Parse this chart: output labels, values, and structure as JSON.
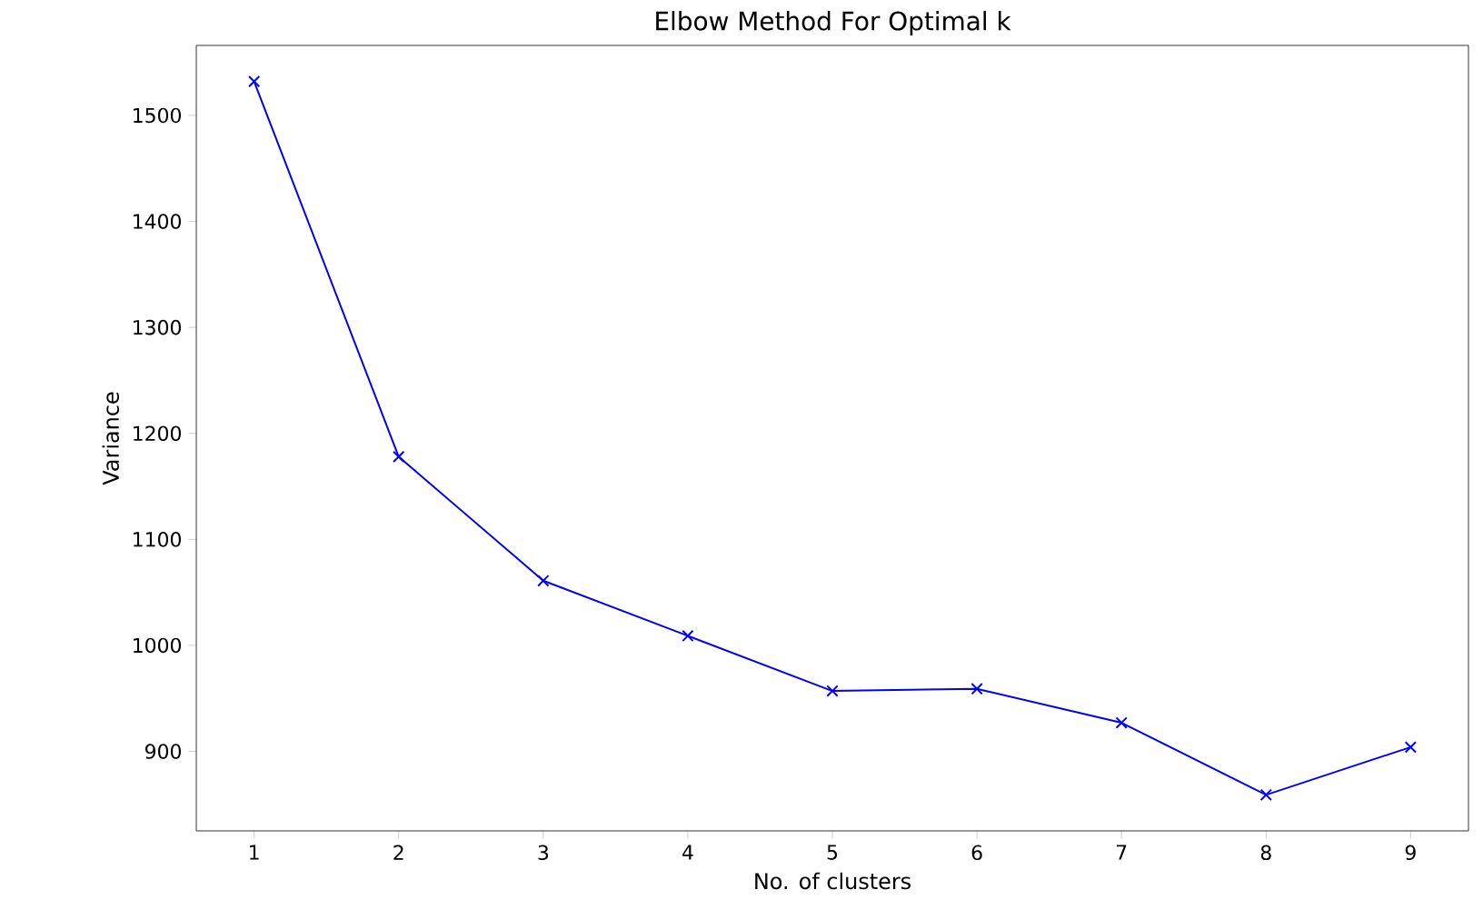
{
  "chart_data": {
    "type": "line",
    "title": "Elbow Method For Optimal k",
    "xlabel": "No. of clusters",
    "ylabel": "Variance",
    "x": [
      1,
      2,
      3,
      4,
      5,
      6,
      7,
      8,
      9
    ],
    "series": [
      {
        "color": "#0000ff",
        "values": [
          1532,
          1178,
          1061,
          1009,
          957,
          959,
          927,
          859,
          904
        ]
      }
    ],
    "xlim": [
      0.6,
      9.4
    ],
    "ylim": [
      825,
      1566
    ],
    "xticks": [
      1,
      2,
      3,
      4,
      5,
      6,
      7,
      8,
      9
    ],
    "yticks": [
      900,
      1000,
      1100,
      1200,
      1300,
      1400,
      1500
    ],
    "marker": "cross",
    "line_style": "solid"
  }
}
